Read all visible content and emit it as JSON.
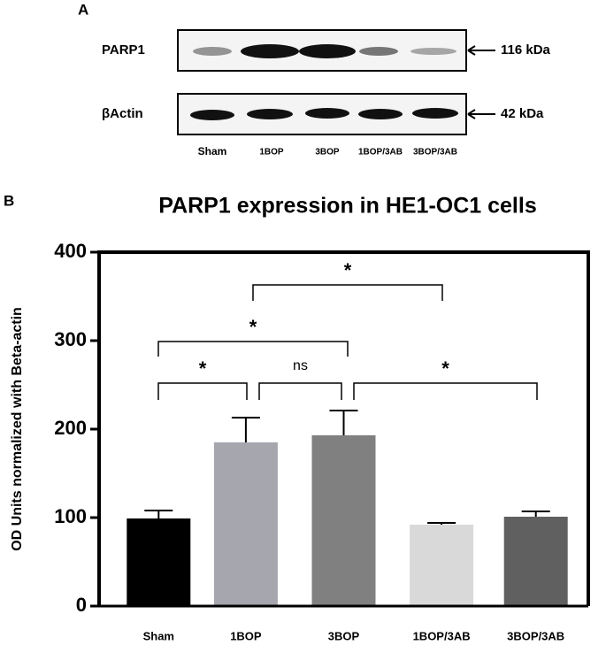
{
  "figure": {
    "panel_a_label": "A",
    "panel_b_label": "B",
    "blot": {
      "rows": [
        {
          "name": "PARP1",
          "size": "116 kDa"
        },
        {
          "name": "βActin",
          "size": "42 kDa"
        }
      ],
      "lanes": [
        "Sham",
        "1BOP",
        "3BOP",
        "1BOP/3AB",
        "3BOP/3AB"
      ]
    }
  },
  "chart_data": {
    "type": "bar",
    "title": "PARP1 expression in HE1-OC1 cells",
    "y_label": "OD Units normalized with Beta-actin",
    "categories": [
      "Sham",
      "1BOP",
      "3BOP",
      "1BOP/3AB",
      "3BOP/3AB"
    ],
    "values": [
      99,
      185,
      193,
      92,
      101
    ],
    "errors": [
      9,
      28,
      28,
      2,
      6
    ],
    "colors": [
      "#000000",
      "#a6a6ae",
      "#808080",
      "#d9d9d9",
      "#606060"
    ],
    "ylim": [
      0,
      400
    ],
    "yticks": [
      0,
      100,
      200,
      300,
      400
    ],
    "annotations": [
      "*",
      "ns",
      "*",
      "*",
      "*"
    ]
  }
}
